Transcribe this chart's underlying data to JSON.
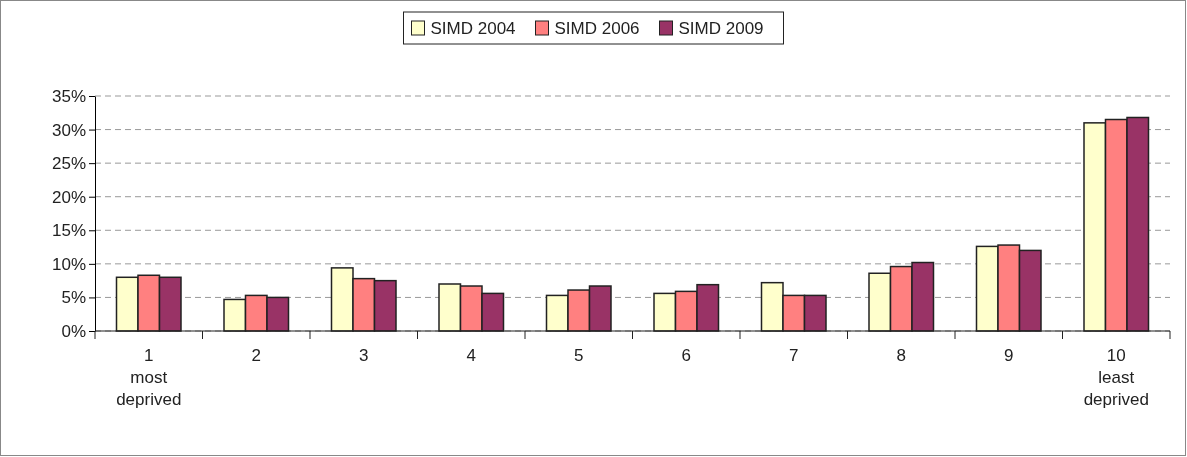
{
  "chart_data": {
    "type": "bar",
    "categories": [
      "1\nmost\ndeprived",
      "2",
      "3",
      "4",
      "5",
      "6",
      "7",
      "8",
      "9",
      "10\nleast\ndeprived"
    ],
    "series": [
      {
        "name": "SIMD 2004",
        "color": "#ffffcc",
        "values": [
          8.0,
          4.7,
          9.4,
          7.0,
          5.3,
          5.6,
          7.2,
          8.6,
          12.6,
          31.0
        ]
      },
      {
        "name": "SIMD 2006",
        "color": "#ff8080",
        "values": [
          8.3,
          5.3,
          7.8,
          6.7,
          6.1,
          5.9,
          5.3,
          9.6,
          12.8,
          31.5
        ]
      },
      {
        "name": "SIMD 2009",
        "color": "#993366",
        "values": [
          8.0,
          5.0,
          7.5,
          5.6,
          6.7,
          6.9,
          5.3,
          10.2,
          12.0,
          31.8
        ]
      }
    ],
    "ylim": [
      0,
      35
    ],
    "yticks": [
      {
        "value": 0,
        "label": "0%"
      },
      {
        "value": 5,
        "label": "5%"
      },
      {
        "value": 10,
        "label": "10%"
      },
      {
        "value": 15,
        "label": "15%"
      },
      {
        "value": 20,
        "label": "20%"
      },
      {
        "value": 25,
        "label": "25%"
      },
      {
        "value": 30,
        "label": "30%"
      },
      {
        "value": 35,
        "label": "35%"
      }
    ],
    "grid": "y",
    "legend": "top"
  }
}
